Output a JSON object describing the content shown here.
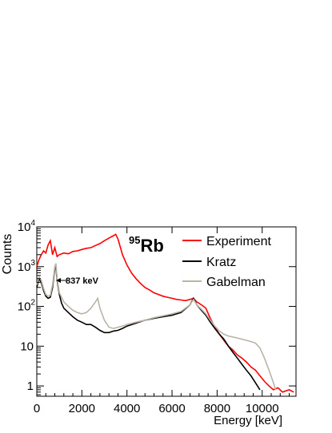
{
  "chart_data": {
    "type": "line",
    "xlabel": "Energy [keV]",
    "ylabel": "Counts",
    "xlim": [
      0,
      11500
    ],
    "ylim": [
      0.55,
      10000
    ],
    "yscale": "log",
    "grid": false,
    "legend_position": "top-right",
    "x_ticks": [
      0,
      2000,
      4000,
      6000,
      8000,
      10000
    ],
    "x_tick_labels": [
      "0",
      "2000",
      "4000",
      "6000",
      "8000",
      "10000"
    ],
    "y_ticks": [
      1,
      10,
      100,
      1000,
      10000
    ],
    "y_tick_labels": [
      {
        "base": "1",
        "exp": ""
      },
      {
        "base": "10",
        "exp": ""
      },
      {
        "base": "10",
        "exp": "2"
      },
      {
        "base": "10",
        "exp": "3"
      },
      {
        "base": "10",
        "exp": "4"
      }
    ],
    "isotope": {
      "mass": "95",
      "symbol": "Rb"
    },
    "annotation": {
      "text": "837 keV",
      "x": 837,
      "y": 500
    },
    "series": [
      {
        "name": "Experiment",
        "color": "#ff0000",
        "x": [
          0,
          100,
          200,
          300,
          400,
          500,
          600,
          700,
          800,
          900,
          1000,
          1200,
          1400,
          1600,
          1800,
          2000,
          2200,
          2400,
          2600,
          2800,
          3000,
          3200,
          3400,
          3500,
          3600,
          3700,
          3800,
          4000,
          4200,
          4400,
          4600,
          4800,
          5000,
          5200,
          5400,
          5600,
          5800,
          6000,
          6200,
          6400,
          6600,
          6800,
          6950,
          7100,
          7300,
          7500,
          7700,
          7900,
          8100,
          8300,
          8500,
          8700,
          8900,
          9100,
          9300,
          9500,
          9700,
          9900,
          10100,
          10300,
          10500,
          10700,
          10900,
          11200,
          11400
        ],
        "y": [
          1000,
          1500,
          2000,
          2500,
          2200,
          3500,
          4500,
          2000,
          3000,
          1800,
          2000,
          2200,
          2100,
          2400,
          2500,
          2700,
          2900,
          3000,
          3400,
          3800,
          4500,
          5200,
          6000,
          6500,
          5000,
          3200,
          2000,
          1100,
          700,
          500,
          380,
          300,
          260,
          220,
          200,
          180,
          170,
          160,
          150,
          145,
          140,
          150,
          160,
          130,
          110,
          90,
          50,
          30,
          20,
          14,
          10,
          8,
          6,
          5,
          4,
          3,
          2.5,
          1.8,
          1.3,
          1,
          0.8,
          0.9,
          0.7,
          0.8,
          0.7
        ]
      },
      {
        "name": "Kratz",
        "color": "#000000",
        "x": [
          0,
          100,
          200,
          300,
          400,
          500,
          600,
          700,
          800,
          850,
          900,
          1000,
          1100,
          1200,
          1400,
          1600,
          1800,
          2000,
          2200,
          2400,
          2600,
          2800,
          3000,
          3200,
          3400,
          3600,
          3800,
          4000,
          4400,
          4800,
          5200,
          5600,
          6000,
          6400,
          6800,
          6950,
          7100,
          7300,
          7500,
          7700,
          7900,
          8100,
          8300,
          8500,
          8700,
          8900,
          9100,
          9300,
          9500,
          9700,
          9900
        ],
        "y": [
          300,
          500,
          400,
          250,
          180,
          160,
          170,
          300,
          900,
          1000,
          450,
          200,
          120,
          90,
          70,
          55,
          45,
          40,
          35,
          35,
          30,
          25,
          22,
          22,
          24,
          25,
          28,
          32,
          38,
          45,
          50,
          55,
          60,
          70,
          110,
          160,
          110,
          80,
          60,
          40,
          28,
          20,
          15,
          10,
          7,
          5,
          3.5,
          2.5,
          1.8,
          1.2,
          0.8
        ]
      },
      {
        "name": "Gabelman",
        "color": "#bcb3a8",
        "x": [
          0,
          100,
          200,
          300,
          400,
          500,
          600,
          700,
          800,
          850,
          900,
          1000,
          1200,
          1400,
          1600,
          1800,
          2000,
          2200,
          2400,
          2600,
          2700,
          2800,
          3000,
          3200,
          3400,
          3600,
          3800,
          4000,
          4400,
          4800,
          5200,
          5600,
          6000,
          6400,
          6800,
          6950,
          7100,
          7300,
          7500,
          7700,
          7900,
          8100,
          8300,
          8500,
          8700,
          8900,
          9100,
          9300,
          9500,
          9700,
          9900,
          10100,
          10300,
          10500,
          10600
        ],
        "y": [
          350,
          550,
          450,
          280,
          200,
          180,
          190,
          350,
          1000,
          1200,
          500,
          220,
          130,
          100,
          80,
          70,
          65,
          70,
          90,
          130,
          160,
          90,
          45,
          30,
          28,
          30,
          32,
          35,
          40,
          45,
          52,
          58,
          65,
          75,
          110,
          150,
          110,
          85,
          65,
          45,
          32,
          24,
          20,
          18,
          17,
          16,
          15,
          14,
          13,
          12,
          9,
          5,
          2.5,
          1.2,
          0.8
        ]
      }
    ]
  }
}
